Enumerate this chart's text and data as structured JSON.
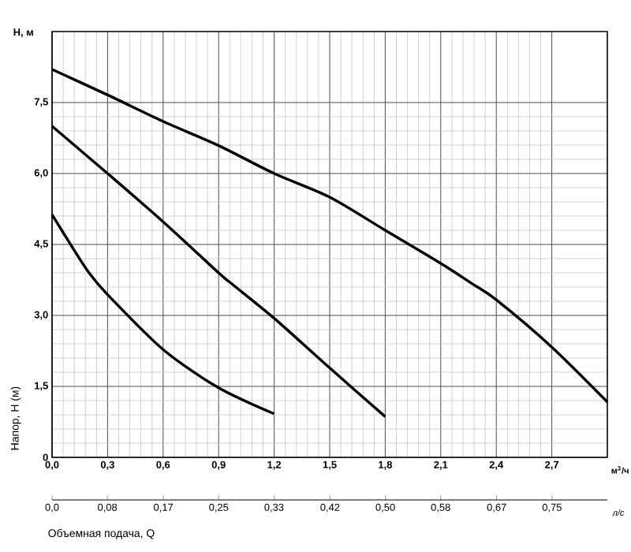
{
  "chart_data": {
    "type": "line",
    "xlabel": "м$^{3}$/ч",
    "x2label": "л/с",
    "ylabel": "Напор, H (м)",
    "annotations": [
      "H, м",
      "Объемная подача, Q"
    ],
    "xlim": [
      0,
      3.0
    ],
    "ylim": [
      0,
      9
    ],
    "x2lim": [
      0,
      0.833
    ],
    "xticks": [
      {
        "value": 0,
        "label": "0,0"
      },
      {
        "value": 0.3,
        "label": "0,3"
      },
      {
        "value": 0.6,
        "label": "0,6"
      },
      {
        "value": 0.9,
        "label": "0,9"
      },
      {
        "value": 1.2,
        "label": "1,2"
      },
      {
        "value": 1.5,
        "label": "1,5"
      },
      {
        "value": 1.8,
        "label": "1,8"
      },
      {
        "value": 2.1,
        "label": "2,1"
      },
      {
        "value": 2.4,
        "label": "2,4"
      },
      {
        "value": 2.7,
        "label": "2,7"
      }
    ],
    "x2ticks": [
      {
        "value": 0,
        "label": "0,0"
      },
      {
        "value": 0.083,
        "label": "0,08"
      },
      {
        "value": 0.167,
        "label": "0,17"
      },
      {
        "value": 0.25,
        "label": "0,25"
      },
      {
        "value": 0.333,
        "label": "0,33"
      },
      {
        "value": 0.417,
        "label": "0,42"
      },
      {
        "value": 0.5,
        "label": "0,50"
      },
      {
        "value": 0.583,
        "label": "0,58"
      },
      {
        "value": 0.667,
        "label": "0,67"
      },
      {
        "value": 0.75,
        "label": "0,75"
      }
    ],
    "yticks": [
      {
        "value": 0,
        "label": "0"
      },
      {
        "value": 1.5,
        "label": "1,5"
      },
      {
        "value": 3,
        "label": "3,0"
      },
      {
        "value": 4.5,
        "label": "4,5"
      },
      {
        "value": 6,
        "label": "6,0"
      },
      {
        "value": 7.5,
        "label": "7,5"
      }
    ],
    "grid": true,
    "marker": "none",
    "line_style": "solid",
    "series": [
      {
        "color": "#000000",
        "x": [
          0,
          0.3,
          0.6,
          0.9,
          1.2,
          1.5,
          1.8,
          2.1,
          2.27,
          2.4,
          2.7,
          3.0
        ],
        "values": [
          8.2,
          7.66,
          7.1,
          6.59,
          6.0,
          5.5,
          4.8,
          4.1,
          3.67,
          3.33,
          2.33,
          1.17
        ]
      },
      {
        "color": "#000000",
        "x": [
          0,
          0.3,
          0.6,
          0.9,
          0.97,
          1.2,
          1.5,
          1.8
        ],
        "values": [
          7.0,
          6.0,
          4.98,
          3.9,
          3.67,
          2.94,
          1.89,
          0.86
        ]
      },
      {
        "color": "#000000",
        "x": [
          0,
          0.1,
          0.2,
          0.3,
          0.6,
          0.9,
          1.2
        ],
        "values": [
          5.13,
          4.5,
          3.9,
          3.44,
          2.28,
          1.47,
          0.92
        ]
      }
    ]
  }
}
